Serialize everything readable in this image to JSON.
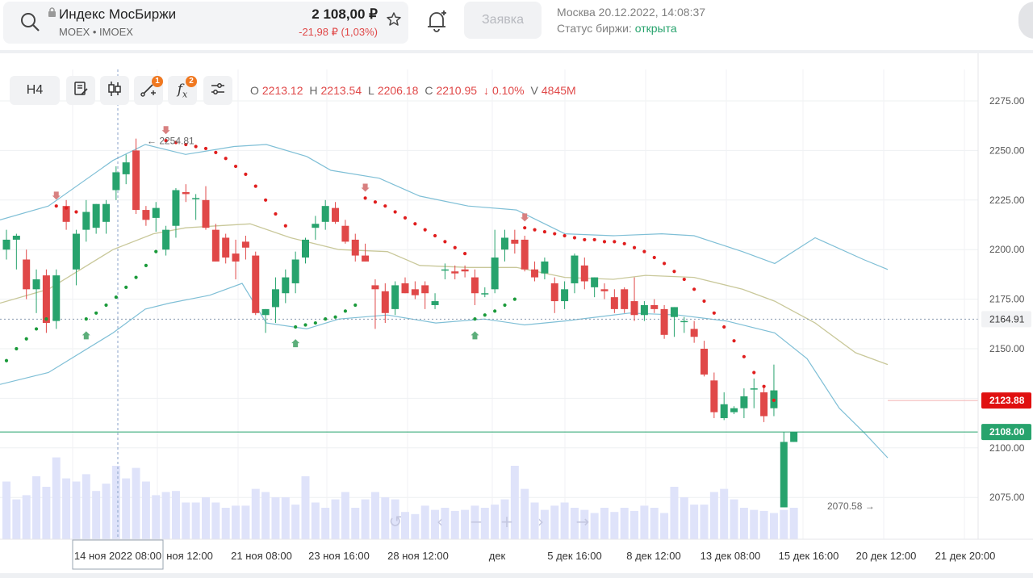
{
  "header": {
    "title": "Индекс МосБиржи",
    "subtitle": "MOEX • IMOEX",
    "price": "2 108,00 ₽",
    "change": "-21,98 ₽ (1,03%)",
    "order_label": "Заявка",
    "datetime": "Москва 20.12.2022, 14:08:37",
    "status_label": "Статус биржи: ",
    "status_value": "открыта"
  },
  "toolbar": {
    "interval": "H4",
    "drawings_badge": "1",
    "indicators_badge": "2"
  },
  "ohlc": {
    "o_label": "O",
    "o": "2213.12",
    "h_label": "H",
    "h": "2213.54",
    "l_label": "L",
    "l": "2206.18",
    "c_label": "C",
    "c": "2210.95",
    "arrow": "↓",
    "pct": "0.10%",
    "v_label": "V",
    "v": "4845M"
  },
  "colors": {
    "up": "#27a36d",
    "down": "#e04848",
    "bollinger": "#7fbfd6",
    "midline": "#c9c89a",
    "volume": "#dfe3fa",
    "sar_down": "#e01e1e",
    "sar_up": "#1a9a3a"
  },
  "chart_data": {
    "type": "candlestick",
    "y_ticks": [
      "2275.00",
      "2250.00",
      "2225.00",
      "2200.00",
      "2175.00",
      "2150.00",
      "2100.00",
      "2075.00"
    ],
    "ylim": [
      2050,
      2290
    ],
    "x_labels": [
      "14 ноя 2022 08:00",
      "ноя 12:00",
      "21 ноя 08:00",
      "23 ноя 16:00",
      "28 ноя 12:00",
      "дек",
      "5 дек 16:00",
      "8 дек 12:00",
      "13 дек 08:00",
      "15 дек 16:00",
      "20 дек 12:00",
      "21 дек 20:00"
    ],
    "price_marks": [
      {
        "label": "2164.91",
        "value": 2164.91,
        "kind": "crosshair"
      },
      {
        "label": "2123.88",
        "value": 2123.88,
        "kind": "sar"
      },
      {
        "label": "2108.00",
        "value": 2108.0,
        "kind": "last"
      }
    ],
    "annotations": {
      "high_label": "2254.81",
      "low_label": "2070.58"
    },
    "candles": [
      [
        2200,
        2210,
        2195,
        2205
      ],
      [
        2205,
        2208,
        2190,
        2207
      ],
      [
        2195,
        2200,
        2175,
        2180
      ],
      [
        2180,
        2190,
        2168,
        2185
      ],
      [
        2187,
        2190,
        2158,
        2163
      ],
      [
        2164,
        2190,
        2160,
        2187
      ],
      [
        2222,
        2225,
        2210,
        2214
      ],
      [
        2190,
        2210,
        2182,
        2208
      ],
      [
        2210,
        2225,
        2204,
        2219
      ],
      [
        2211,
        2223,
        2208,
        2223
      ],
      [
        2214,
        2225,
        2208,
        2223
      ],
      [
        2230,
        2242,
        2225,
        2239
      ],
      [
        2238,
        2248,
        2233,
        2244
      ],
      [
        2250,
        2256,
        2218,
        2220
      ],
      [
        2220,
        2222,
        2212,
        2215
      ],
      [
        2216,
        2224,
        2209,
        2221
      ],
      [
        2200,
        2212,
        2197,
        2210
      ],
      [
        2212,
        2231,
        2206,
        2230
      ],
      [
        2229,
        2233,
        2224,
        2228
      ],
      [
        2226,
        2228,
        2215,
        2226
      ],
      [
        2225,
        2232,
        2210,
        2211
      ],
      [
        2210,
        2213,
        2194,
        2194
      ],
      [
        2206,
        2208,
        2193,
        2196
      ],
      [
        2198,
        2205,
        2185,
        2194
      ],
      [
        2204,
        2207,
        2195,
        2201
      ],
      [
        2197,
        2199,
        2167,
        2168
      ],
      [
        2167,
        2170,
        2158,
        2170
      ],
      [
        2171,
        2186,
        2163,
        2180
      ],
      [
        2178,
        2190,
        2173,
        2186
      ],
      [
        2183,
        2199,
        2178,
        2195
      ],
      [
        2196,
        2206,
        2193,
        2205
      ],
      [
        2211,
        2217,
        2205,
        2213
      ],
      [
        2214,
        2225,
        2210,
        2222
      ],
      [
        2221,
        2224,
        2213,
        2214
      ],
      [
        2212,
        2215,
        2203,
        2204
      ],
      [
        2205,
        2208,
        2194,
        2197
      ],
      [
        2197,
        2203,
        2194,
        2194
      ],
      [
        2182,
        2185,
        2160,
        2180
      ],
      [
        2179,
        2183,
        2163,
        2168
      ],
      [
        2170,
        2184,
        2167,
        2182
      ],
      [
        2183,
        2186,
        2178,
        2178
      ],
      [
        2180,
        2184,
        2175,
        2177
      ],
      [
        2182,
        2184,
        2170,
        2178
      ],
      [
        2172,
        2178,
        2170,
        2174
      ],
      [
        2190,
        2193,
        2185,
        2190
      ],
      [
        2189,
        2192,
        2185,
        2188
      ],
      [
        2190,
        2192,
        2186,
        2189
      ],
      [
        2186,
        2190,
        2172,
        2178
      ],
      [
        2178,
        2181,
        2176,
        2178
      ],
      [
        2180,
        2210,
        2178,
        2196
      ],
      [
        2200,
        2210,
        2194,
        2206
      ],
      [
        2205,
        2210,
        2198,
        2203
      ],
      [
        2205,
        2207,
        2189,
        2190
      ],
      [
        2190,
        2194,
        2184,
        2186
      ],
      [
        2188,
        2196,
        2185,
        2194
      ],
      [
        2183,
        2186,
        2168,
        2174
      ],
      [
        2174,
        2184,
        2170,
        2180
      ],
      [
        2183,
        2198,
        2178,
        2197
      ],
      [
        2192,
        2196,
        2180,
        2184
      ],
      [
        2181,
        2186,
        2176,
        2186
      ],
      [
        2180,
        2183,
        2175,
        2179
      ],
      [
        2176,
        2180,
        2168,
        2170
      ],
      [
        2180,
        2181,
        2168,
        2170
      ],
      [
        2174,
        2186,
        2164,
        2167
      ],
      [
        2167,
        2174,
        2164,
        2172
      ],
      [
        2172,
        2175,
        2168,
        2170
      ],
      [
        2170,
        2172,
        2155,
        2157
      ],
      [
        2166,
        2171,
        2156,
        2171
      ],
      [
        2164,
        2166,
        2158,
        2164
      ],
      [
        2160,
        2164,
        2153,
        2156
      ],
      [
        2150,
        2154,
        2136,
        2137
      ],
      [
        2134,
        2138,
        2115,
        2118
      ],
      [
        2115,
        2128,
        2114,
        2122
      ],
      [
        2118,
        2121,
        2117,
        2120
      ],
      [
        2120,
        2130,
        2115,
        2126
      ],
      [
        2130,
        2135,
        2120,
        2130
      ],
      [
        2128,
        2131,
        2113,
        2116
      ],
      [
        2120,
        2142,
        2116,
        2129
      ],
      [
        2070,
        2108,
        2070,
        2103
      ],
      [
        2103,
        2108,
        2103,
        2108
      ]
    ],
    "volume": [
      0.55,
      0.38,
      0.42,
      0.6,
      0.5,
      0.78,
      0.58,
      0.55,
      0.62,
      0.46,
      0.53,
      0.7,
      0.58,
      0.68,
      0.55,
      0.42,
      0.45,
      0.46,
      0.35,
      0.35,
      0.4,
      0.35,
      0.3,
      0.32,
      0.32,
      0.48,
      0.45,
      0.4,
      0.4,
      0.33,
      0.6,
      0.35,
      0.3,
      0.38,
      0.45,
      0.3,
      0.38,
      0.45,
      0.4,
      0.38,
      0.26,
      0.24,
      0.32,
      0.28,
      0.3,
      0.27,
      0.28,
      0.32,
      0.3,
      0.33,
      0.38,
      0.7,
      0.48,
      0.35,
      0.28,
      0.32,
      0.35,
      0.3,
      0.28,
      0.25,
      0.3,
      0.26,
      0.3,
      0.27,
      0.32,
      0.3,
      0.25,
      0.5,
      0.4,
      0.33,
      0.33,
      0.45,
      0.48,
      0.38,
      0.3,
      0.28,
      0.27,
      0.25,
      0.28,
      0.3
    ],
    "bollinger_upper": [
      [
        0,
        2215
      ],
      [
        60,
        2222
      ],
      [
        140,
        2245
      ],
      [
        180,
        2253
      ],
      [
        230,
        2248
      ],
      [
        290,
        2252
      ],
      [
        330,
        2253
      ],
      [
        380,
        2247
      ],
      [
        410,
        2240
      ],
      [
        470,
        2236
      ],
      [
        520,
        2227
      ],
      [
        580,
        2222
      ],
      [
        640,
        2220
      ],
      [
        700,
        2208
      ],
      [
        760,
        2207
      ],
      [
        820,
        2208
      ],
      [
        860,
        2207
      ],
      [
        920,
        2199
      ],
      [
        960,
        2193
      ],
      [
        1010,
        2206
      ],
      [
        1070,
        2195
      ],
      [
        1100,
        2190
      ]
    ],
    "bollinger_lower": [
      [
        0,
        2132
      ],
      [
        60,
        2138
      ],
      [
        140,
        2158
      ],
      [
        180,
        2170
      ],
      [
        210,
        2173
      ],
      [
        260,
        2177
      ],
      [
        300,
        2183
      ],
      [
        330,
        2163
      ],
      [
        380,
        2160
      ],
      [
        420,
        2165
      ],
      [
        480,
        2167
      ],
      [
        540,
        2163
      ],
      [
        600,
        2165
      ],
      [
        650,
        2162
      ],
      [
        700,
        2164
      ],
      [
        780,
        2168
      ],
      [
        840,
        2167
      ],
      [
        900,
        2164
      ],
      [
        960,
        2158
      ],
      [
        1000,
        2145
      ],
      [
        1040,
        2120
      ],
      [
        1070,
        2108
      ],
      [
        1100,
        2095
      ]
    ],
    "bollinger_mid": [
      [
        0,
        2173
      ],
      [
        60,
        2180
      ],
      [
        140,
        2200
      ],
      [
        190,
        2208
      ],
      [
        230,
        2211
      ],
      [
        270,
        2212
      ],
      [
        310,
        2213
      ],
      [
        360,
        2206
      ],
      [
        420,
        2200
      ],
      [
        480,
        2199
      ],
      [
        520,
        2192
      ],
      [
        580,
        2191
      ],
      [
        640,
        2191
      ],
      [
        700,
        2186
      ],
      [
        760,
        2185
      ],
      [
        800,
        2187
      ],
      [
        860,
        2186
      ],
      [
        920,
        2180
      ],
      [
        960,
        2174
      ],
      [
        1010,
        2163
      ],
      [
        1060,
        2148
      ],
      [
        1100,
        2142
      ]
    ],
    "sar": [
      {
        "i": 0,
        "v": 2144,
        "d": "up"
      },
      {
        "i": 1,
        "v": 2150,
        "d": "up"
      },
      {
        "i": 2,
        "v": 2155,
        "d": "up"
      },
      {
        "i": 3,
        "v": 2160,
        "d": "up"
      },
      {
        "i": 4,
        "v": 2165,
        "d": "up"
      },
      {
        "i": 5,
        "v": 2222,
        "d": "down"
      },
      {
        "i": 6,
        "v": 2221,
        "d": "down"
      },
      {
        "i": 7,
        "v": 2219,
        "d": "down"
      },
      {
        "i": 8,
        "v": 2165,
        "d": "up"
      },
      {
        "i": 9,
        "v": 2168,
        "d": "up"
      },
      {
        "i": 10,
        "v": 2172,
        "d": "up"
      },
      {
        "i": 11,
        "v": 2176,
        "d": "up"
      },
      {
        "i": 12,
        "v": 2181,
        "d": "up"
      },
      {
        "i": 13,
        "v": 2186,
        "d": "up"
      },
      {
        "i": 14,
        "v": 2192,
        "d": "up"
      },
      {
        "i": 15,
        "v": 2199,
        "d": "up"
      },
      {
        "i": 16,
        "v": 2255,
        "d": "down"
      },
      {
        "i": 17,
        "v": 2254,
        "d": "down"
      },
      {
        "i": 18,
        "v": 2253,
        "d": "down"
      },
      {
        "i": 19,
        "v": 2252,
        "d": "down"
      },
      {
        "i": 20,
        "v": 2251,
        "d": "down"
      },
      {
        "i": 21,
        "v": 2249,
        "d": "down"
      },
      {
        "i": 22,
        "v": 2246,
        "d": "down"
      },
      {
        "i": 23,
        "v": 2242,
        "d": "down"
      },
      {
        "i": 24,
        "v": 2238,
        "d": "down"
      },
      {
        "i": 25,
        "v": 2232,
        "d": "down"
      },
      {
        "i": 26,
        "v": 2225,
        "d": "down"
      },
      {
        "i": 27,
        "v": 2218,
        "d": "down"
      },
      {
        "i": 28,
        "v": 2212,
        "d": "down"
      },
      {
        "i": 29,
        "v": 2161,
        "d": "up"
      },
      {
        "i": 30,
        "v": 2162,
        "d": "up"
      },
      {
        "i": 31,
        "v": 2163,
        "d": "up"
      },
      {
        "i": 32,
        "v": 2165,
        "d": "up"
      },
      {
        "i": 33,
        "v": 2166,
        "d": "up"
      },
      {
        "i": 34,
        "v": 2169,
        "d": "up"
      },
      {
        "i": 35,
        "v": 2172,
        "d": "up"
      },
      {
        "i": 36,
        "v": 2226,
        "d": "down"
      },
      {
        "i": 37,
        "v": 2224,
        "d": "down"
      },
      {
        "i": 38,
        "v": 2222,
        "d": "down"
      },
      {
        "i": 39,
        "v": 2219,
        "d": "down"
      },
      {
        "i": 40,
        "v": 2216,
        "d": "down"
      },
      {
        "i": 41,
        "v": 2213,
        "d": "down"
      },
      {
        "i": 42,
        "v": 2210,
        "d": "down"
      },
      {
        "i": 43,
        "v": 2207,
        "d": "down"
      },
      {
        "i": 44,
        "v": 2204,
        "d": "down"
      },
      {
        "i": 45,
        "v": 2201,
        "d": "down"
      },
      {
        "i": 46,
        "v": 2198,
        "d": "down"
      },
      {
        "i": 47,
        "v": 2165,
        "d": "up"
      },
      {
        "i": 48,
        "v": 2167,
        "d": "up"
      },
      {
        "i": 49,
        "v": 2169,
        "d": "up"
      },
      {
        "i": 50,
        "v": 2172,
        "d": "up"
      },
      {
        "i": 51,
        "v": 2175,
        "d": "up"
      },
      {
        "i": 52,
        "v": 2211,
        "d": "down"
      },
      {
        "i": 53,
        "v": 2210,
        "d": "down"
      },
      {
        "i": 54,
        "v": 2209,
        "d": "down"
      },
      {
        "i": 55,
        "v": 2208,
        "d": "down"
      },
      {
        "i": 56,
        "v": 2207,
        "d": "down"
      },
      {
        "i": 57,
        "v": 2206,
        "d": "down"
      },
      {
        "i": 58,
        "v": 2205,
        "d": "down"
      },
      {
        "i": 59,
        "v": 2205,
        "d": "down"
      },
      {
        "i": 60,
        "v": 2204,
        "d": "down"
      },
      {
        "i": 61,
        "v": 2204,
        "d": "down"
      },
      {
        "i": 62,
        "v": 2203,
        "d": "down"
      },
      {
        "i": 63,
        "v": 2201,
        "d": "down"
      },
      {
        "i": 64,
        "v": 2199,
        "d": "down"
      },
      {
        "i": 65,
        "v": 2196,
        "d": "down"
      },
      {
        "i": 66,
        "v": 2193,
        "d": "down"
      },
      {
        "i": 67,
        "v": 2189,
        "d": "down"
      },
      {
        "i": 68,
        "v": 2185,
        "d": "down"
      },
      {
        "i": 69,
        "v": 2180,
        "d": "down"
      },
      {
        "i": 70,
        "v": 2174,
        "d": "down"
      },
      {
        "i": 71,
        "v": 2168,
        "d": "down"
      },
      {
        "i": 72,
        "v": 2161,
        "d": "down"
      },
      {
        "i": 73,
        "v": 2154,
        "d": "down"
      },
      {
        "i": 74,
        "v": 2146,
        "d": "down"
      },
      {
        "i": 75,
        "v": 2138,
        "d": "down"
      },
      {
        "i": 76,
        "v": 2131,
        "d": "down"
      },
      {
        "i": 77,
        "v": 2124,
        "d": "down"
      }
    ],
    "sar_arrows": [
      {
        "i": 5,
        "v": 2226,
        "d": "down"
      },
      {
        "i": 16,
        "v": 2259,
        "d": "down"
      },
      {
        "i": 36,
        "v": 2230,
        "d": "down"
      },
      {
        "i": 52,
        "v": 2215,
        "d": "down"
      },
      {
        "i": 8,
        "v": 2158,
        "d": "up"
      },
      {
        "i": 29,
        "v": 2154,
        "d": "up"
      },
      {
        "i": 47,
        "v": 2158,
        "d": "up"
      }
    ]
  }
}
